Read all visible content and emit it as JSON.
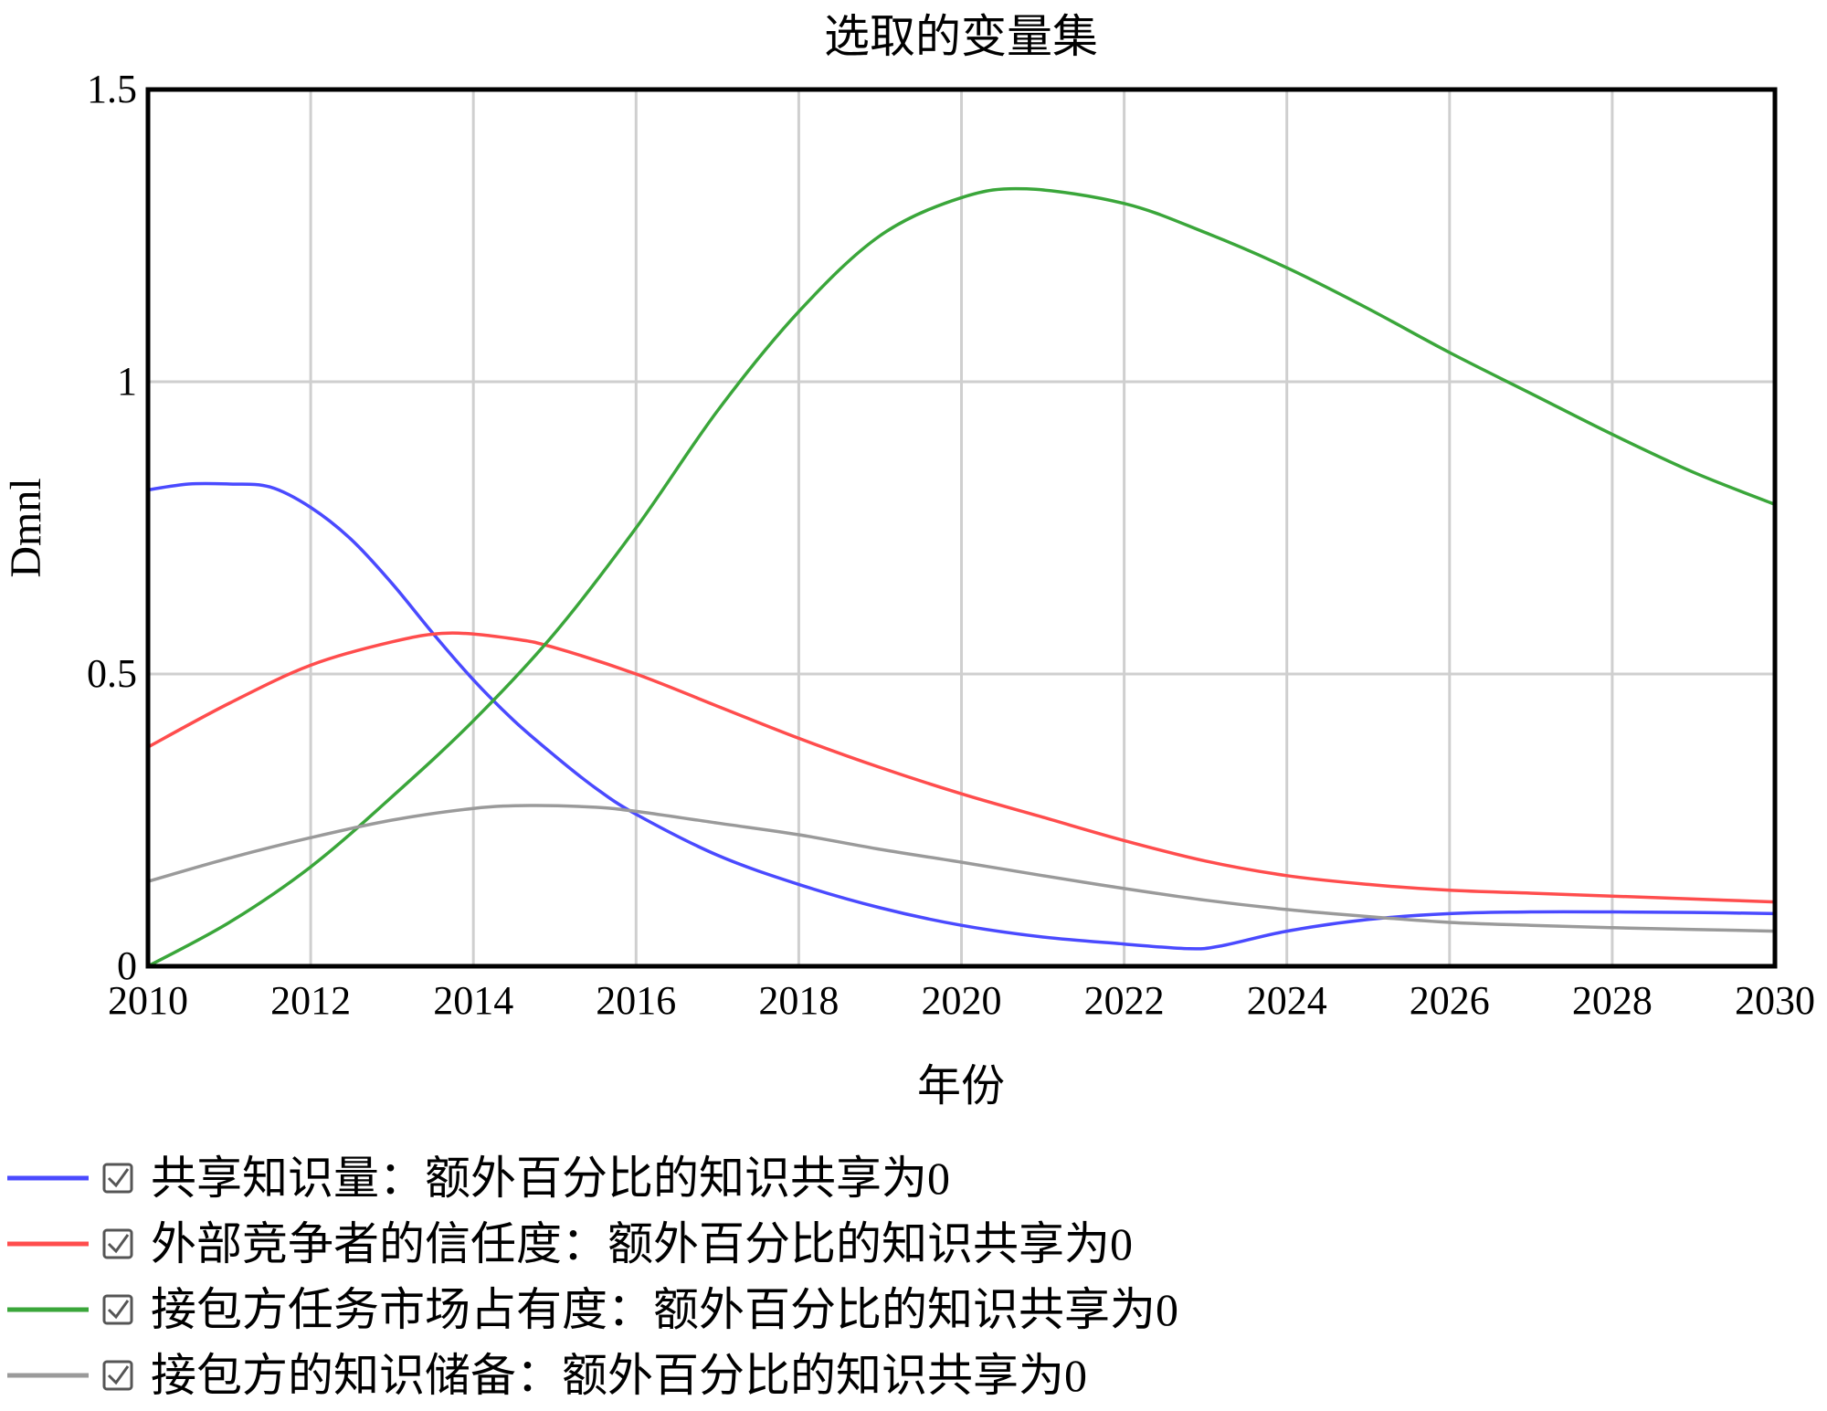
{
  "chart_data": {
    "type": "line",
    "title": "选取的变量集",
    "xlabel": "年份",
    "ylabel": "Dmnl",
    "xlim": [
      2010,
      2030
    ],
    "ylim": [
      0,
      1.5
    ],
    "x_ticks": [
      "2010",
      "2012",
      "2014",
      "2016",
      "2018",
      "2020",
      "2022",
      "2024",
      "2026",
      "2028",
      "2030"
    ],
    "y_ticks": [
      "0",
      "0.5",
      "1",
      "1.5"
    ],
    "grid": true,
    "legend_position": "bottom",
    "series": [
      {
        "name": "共享知识量：额外百分比的知识共享为0",
        "color": "#4a4aff",
        "x": [
          2010,
          2010.5,
          2011,
          2011.5,
          2012,
          2012.5,
          2013,
          2013.5,
          2014,
          2014.5,
          2015,
          2015.5,
          2016,
          2017,
          2018,
          2019,
          2020,
          2021,
          2022,
          2022.8,
          2023.2,
          2024,
          2025,
          2026,
          2027,
          2028,
          2029,
          2030
        ],
        "y": [
          0.815,
          0.825,
          0.825,
          0.82,
          0.785,
          0.73,
          0.655,
          0.57,
          0.49,
          0.42,
          0.36,
          0.305,
          0.26,
          0.19,
          0.14,
          0.1,
          0.07,
          0.05,
          0.038,
          0.03,
          0.035,
          0.06,
          0.08,
          0.09,
          0.093,
          0.093,
          0.092,
          0.09
        ]
      },
      {
        "name": "外部竞争者的信任度：额外百分比的知识共享为0",
        "color": "#ff4d4d",
        "x": [
          2010,
          2011,
          2012,
          2013,
          2013.7,
          2014.5,
          2015,
          2016,
          2017,
          2018,
          2019,
          2020,
          2021,
          2022,
          2023,
          2024,
          2025,
          2026,
          2027,
          2028,
          2029,
          2030
        ],
        "y": [
          0.375,
          0.45,
          0.515,
          0.555,
          0.57,
          0.56,
          0.545,
          0.5,
          0.445,
          0.39,
          0.34,
          0.295,
          0.255,
          0.215,
          0.18,
          0.155,
          0.14,
          0.13,
          0.125,
          0.12,
          0.115,
          0.11
        ]
      },
      {
        "name": "接包方任务市场占有度：额外百分比的知识共享为0",
        "color": "#3aa63a",
        "x": [
          2010,
          2011,
          2012,
          2013,
          2014,
          2015,
          2016,
          2017,
          2018,
          2019,
          2020,
          2020.8,
          2022,
          2023,
          2024,
          2025,
          2026,
          2027,
          2028,
          2029,
          2030
        ],
        "y": [
          0.0,
          0.075,
          0.17,
          0.29,
          0.42,
          0.57,
          0.75,
          0.95,
          1.12,
          1.25,
          1.315,
          1.33,
          1.305,
          1.255,
          1.195,
          1.125,
          1.05,
          0.98,
          0.91,
          0.845,
          0.79
        ]
      },
      {
        "name": "接包方的知识储备：额外百分比的知识共享为0",
        "color": "#9a9a9a",
        "x": [
          2010,
          2011,
          2012,
          2013,
          2014,
          2014.7,
          2015.5,
          2016,
          2017,
          2018,
          2019,
          2020,
          2021,
          2022,
          2023,
          2024,
          2025,
          2026,
          2027,
          2028,
          2029,
          2030
        ],
        "y": [
          0.145,
          0.185,
          0.22,
          0.25,
          0.27,
          0.275,
          0.272,
          0.265,
          0.245,
          0.225,
          0.2,
          0.178,
          0.155,
          0.133,
          0.113,
          0.097,
          0.085,
          0.075,
          0.07,
          0.066,
          0.063,
          0.06
        ]
      }
    ]
  }
}
